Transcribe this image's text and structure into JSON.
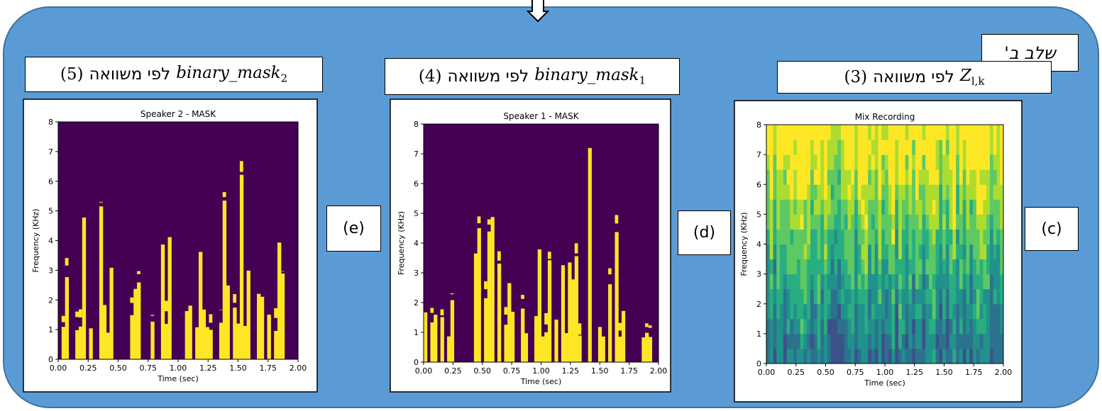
{
  "stage_label": "שלב ב'",
  "panels": [
    {
      "caption": {
        "equation": "(5)",
        "text": "לפי משוואה",
        "symbol": "binary_mask",
        "subscript": "2"
      },
      "label": "(e)",
      "chart_data": {
        "type": "heatmap",
        "colormap": "mask",
        "title": "Speaker 2 - MASK",
        "x_label": "Time (sec)",
        "y_label": "Frequency (KHz)",
        "xlim": [
          0,
          2
        ],
        "ylim": [
          0,
          8
        ],
        "xticks": [
          {
            "value": 0,
            "label": "0.00"
          },
          {
            "value": 0.25,
            "label": "0.25"
          },
          {
            "value": 0.5,
            "label": "0.50"
          },
          {
            "value": 0.75,
            "label": "0.75"
          },
          {
            "value": 1,
            "label": "1.00"
          },
          {
            "value": 1.25,
            "label": "1.25"
          },
          {
            "value": 1.5,
            "label": "1.50"
          },
          {
            "value": 1.75,
            "label": "1.75"
          },
          {
            "value": 2,
            "label": "2.00"
          }
        ],
        "yticks": [
          0,
          1,
          2,
          3,
          4,
          5,
          6,
          7,
          8
        ]
      }
    },
    {
      "caption": {
        "equation": "(4)",
        "text": "לפי משוואה",
        "symbol": "binary_mask",
        "subscript": "1"
      },
      "label": "(d)",
      "chart_data": {
        "type": "heatmap",
        "colormap": "mask",
        "title": "Speaker 1 - MASK",
        "x_label": "Time (sec)",
        "y_label": "Frequency (KHz)",
        "xlim": [
          0,
          2
        ],
        "ylim": [
          0,
          8
        ],
        "xticks": [
          {
            "value": 0,
            "label": "0.00"
          },
          {
            "value": 0.25,
            "label": "0.25"
          },
          {
            "value": 0.5,
            "label": "0.50"
          },
          {
            "value": 0.75,
            "label": "0.75"
          },
          {
            "value": 1,
            "label": "1.00"
          },
          {
            "value": 1.25,
            "label": "1.25"
          },
          {
            "value": 1.5,
            "label": "1.50"
          },
          {
            "value": 1.75,
            "label": "1.75"
          },
          {
            "value": 2,
            "label": "2.00"
          }
        ],
        "yticks": [
          0,
          1,
          2,
          3,
          4,
          5,
          6,
          7,
          8
        ]
      }
    },
    {
      "caption": {
        "equation": "(3)",
        "text": "לפי משוואה",
        "symbol": "Z",
        "subscript": "l,k"
      },
      "label": "(c)",
      "chart_data": {
        "type": "heatmap",
        "colormap": "viridis",
        "title": "Mix Recording",
        "x_label": "Time (sec)",
        "y_label": "Frequency (KHz)",
        "xlim": [
          0,
          2
        ],
        "ylim": [
          0,
          8
        ],
        "xticks": [
          {
            "value": 0,
            "label": "0.00"
          },
          {
            "value": 0.25,
            "label": "0.25"
          },
          {
            "value": 0.5,
            "label": "0.50"
          },
          {
            "value": 0.75,
            "label": "0.75"
          },
          {
            "value": 1,
            "label": "1.00"
          },
          {
            "value": 1.25,
            "label": "1.25"
          },
          {
            "value": 1.5,
            "label": "1.50"
          },
          {
            "value": 1.75,
            "label": "1.75"
          },
          {
            "value": 2,
            "label": "2.00"
          }
        ],
        "yticks": [
          0,
          1,
          2,
          3,
          4,
          5,
          6,
          7,
          8
        ]
      }
    }
  ]
}
